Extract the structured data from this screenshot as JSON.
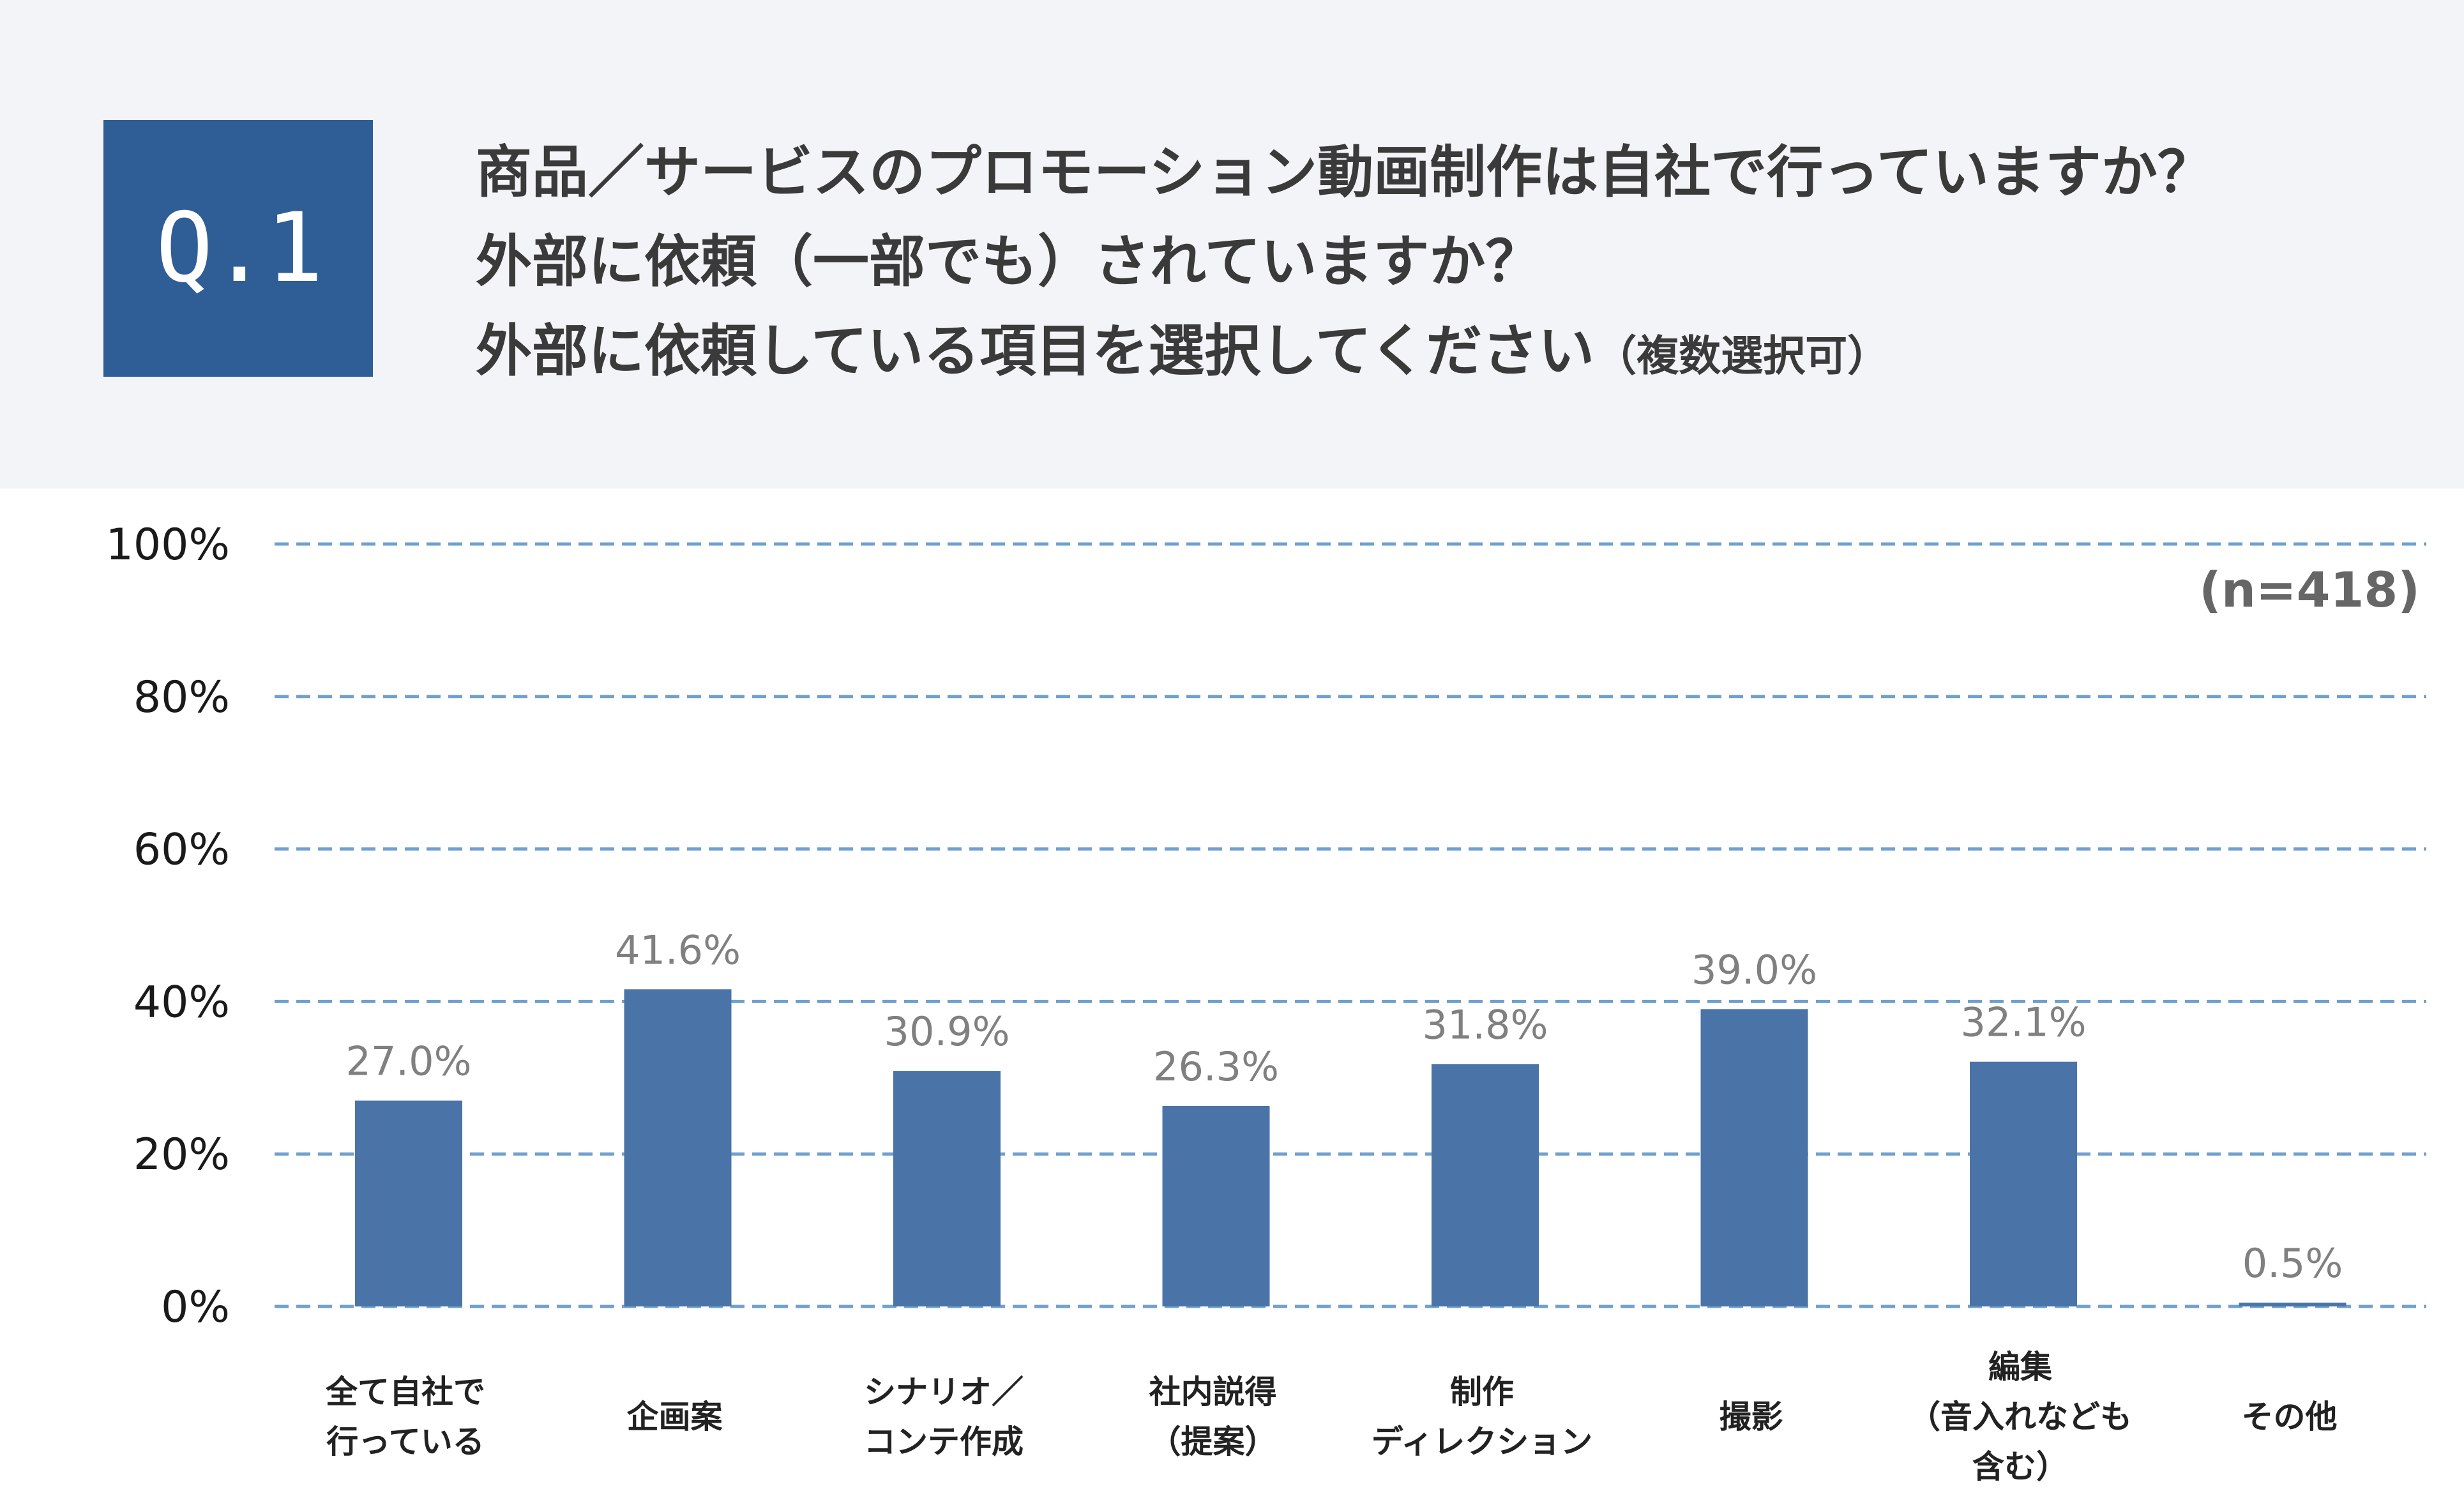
{
  "header": {
    "badge": "Q.1",
    "question_lines": [
      "商品／サービスのプロモーション動画制作は自社で行っていますか？",
      "外部に依頼（一部でも）されていますか？",
      "外部に依頼している項目を選択してください"
    ],
    "question_note": "（複数選択可）"
  },
  "chart_data": {
    "type": "bar",
    "categories": [
      [
        "全て自社で",
        "行っている"
      ],
      [
        "企画案"
      ],
      [
        "シナリオ／",
        "コンテ作成"
      ],
      [
        "社内説得",
        "（提案）"
      ],
      [
        "制作",
        "ディレクション"
      ],
      [
        "撮影"
      ],
      [
        "編集",
        "（音入れなども",
        "含む）"
      ],
      [
        "その他"
      ]
    ],
    "values": [
      27.0,
      41.6,
      30.9,
      26.3,
      31.8,
      39.0,
      32.1,
      0.5
    ],
    "value_labels": [
      "27.0%",
      "41.6%",
      "30.9%",
      "26.3%",
      "31.8%",
      "39.0%",
      "32.1%",
      "0.5%"
    ],
    "ylim": [
      0,
      100
    ],
    "yticks": [
      0,
      20,
      40,
      60,
      80,
      100
    ],
    "ytick_labels": [
      "0%",
      "20%",
      "40%",
      "60%",
      "80%",
      "100%"
    ],
    "annotation": "(n=418)",
    "grid": true,
    "colors": {
      "bar": "#4a74a8",
      "grid": "#6fa0cf",
      "value_label": "#808080",
      "tick_label": "#1a1a1a",
      "category_label": "#222222",
      "annotation": "#666666"
    }
  }
}
